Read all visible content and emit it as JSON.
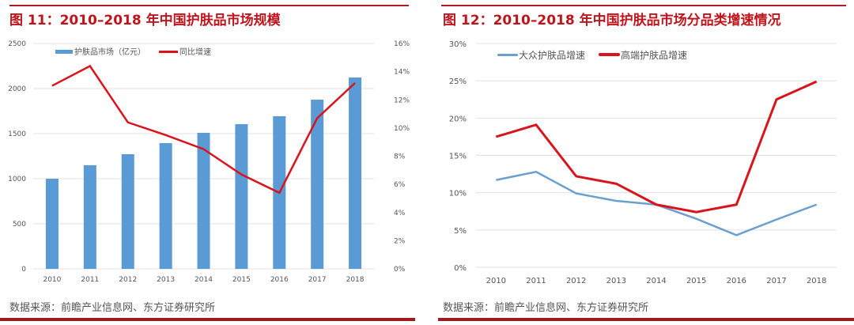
{
  "left": {
    "title": "图 11：2010–2018 年中国护肤品市场规模",
    "source": "数据来源：前瞻产业信息网、东方证券研究所"
  },
  "right": {
    "title": "图 12：2010–2018 年中国护肤品市场分品类增速情况",
    "source": "数据来源：前瞻产业信息网、东方证券研究所"
  },
  "colors": {
    "bar": "#5b9bd5",
    "red": "#d9141c",
    "blue": "#6a9fd0"
  },
  "chart_data": [
    {
      "type": "bar",
      "title": "2010–2018 年中国护肤品市场规模",
      "categories": [
        "2010",
        "2011",
        "2012",
        "2013",
        "2014",
        "2015",
        "2016",
        "2017",
        "2018"
      ],
      "ylim": [
        0,
        2500
      ],
      "yticks": [
        "0",
        "500",
        "1000",
        "1500",
        "2000",
        "2500"
      ],
      "y2lim": [
        0,
        16
      ],
      "y2ticks": [
        "0%",
        "2%",
        "4%",
        "6%",
        "8%",
        "10%",
        "12%",
        "14%",
        "16%"
      ],
      "legend": "top-left",
      "series": [
        {
          "name": "护肤品市场（亿元）",
          "type": "bar",
          "axis": "left",
          "values": [
            1000,
            1150,
            1272,
            1395,
            1509,
            1605,
            1693,
            1877,
            2123
          ]
        },
        {
          "name": "同比增速",
          "type": "line",
          "axis": "right",
          "values": [
            13.0,
            14.4,
            10.4,
            9.5,
            8.5,
            6.7,
            5.4,
            10.7,
            13.2
          ]
        }
      ]
    },
    {
      "type": "line",
      "title": "2010–2018 年中国护肤品市场分品类增速情况",
      "categories": [
        "2010",
        "2011",
        "2012",
        "2013",
        "2014",
        "2015",
        "2016",
        "2017",
        "2018"
      ],
      "ylim": [
        0,
        30
      ],
      "yticks": [
        "0%",
        "5%",
        "10%",
        "15%",
        "20%",
        "25%",
        "30%"
      ],
      "legend": "top-left",
      "series": [
        {
          "name": "大众护肤品增速",
          "values": [
            11.7,
            12.8,
            9.9,
            8.9,
            8.4,
            6.5,
            4.3,
            6.4,
            8.4
          ]
        },
        {
          "name": "高端护肤品增速",
          "values": [
            17.5,
            19.1,
            12.2,
            11.2,
            8.4,
            7.4,
            8.4,
            22.5,
            24.9
          ]
        }
      ]
    }
  ]
}
